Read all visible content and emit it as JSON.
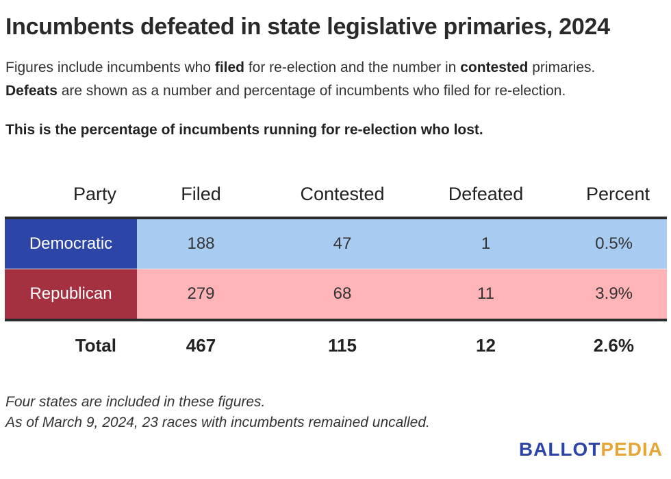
{
  "title": "Incumbents defeated in state legislative primaries, 2024",
  "subtitle": {
    "line1_a": "Figures include incumbents who ",
    "line1_b": "filed",
    "line1_c": " for re-election and the number in ",
    "line1_d": "contested",
    "line1_e": " primaries.",
    "line2_a": "Defeats",
    "line2_b": " are shown as a number and percentage of incumbents who filed for re-election."
  },
  "note": "This is the percentage of incumbents running for re-election who lost.",
  "colors": {
    "democratic_label_bg": "#2e45a8",
    "democratic_row_bg": "#a8cbf2",
    "republican_label_bg": "#a5303f",
    "republican_row_bg": "#ffb5b8",
    "brand_ballot": "#2e45a8",
    "brand_pedia": "#e8a735"
  },
  "chart_data": {
    "type": "table",
    "title": "Incumbents defeated in state legislative primaries, 2024",
    "columns": [
      "Party",
      "Filed",
      "Contested",
      "Defeated",
      "Percent"
    ],
    "rows": [
      {
        "party": "Democratic",
        "filed": "188",
        "contested": "47",
        "defeated": "1",
        "percent": "0.5%"
      },
      {
        "party": "Republican",
        "filed": "279",
        "contested": "68",
        "defeated": "11",
        "percent": "3.9%"
      }
    ],
    "total": {
      "party": "Total",
      "filed": "467",
      "contested": "115",
      "defeated": "12",
      "percent": "2.6%"
    }
  },
  "footnotes": {
    "line1": "Four states are included in these figures.",
    "line2": "As of March 9, 2024, 23 races with incumbents remained uncalled."
  },
  "brand": {
    "part1": "BALLOT",
    "part2": "PEDIA"
  }
}
